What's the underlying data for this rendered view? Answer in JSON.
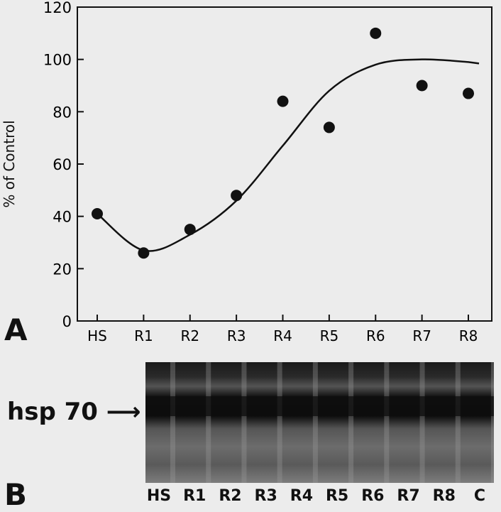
{
  "panel_a": {
    "letter": "A",
    "chart_data": {
      "type": "scatter",
      "title": "",
      "xlabel": "",
      "ylabel": "% of Control",
      "categories": [
        "HS",
        "R1",
        "R2",
        "R3",
        "R4",
        "R5",
        "R6",
        "R7",
        "R8"
      ],
      "values": [
        41,
        26,
        35,
        48,
        84,
        74,
        110,
        90,
        87
      ],
      "yticks": [
        "0",
        "20",
        "40",
        "60",
        "80",
        "100",
        "120"
      ],
      "ylim": [
        0,
        120
      ],
      "grid": false,
      "fit_curve": [
        41,
        27,
        33,
        46,
        67,
        88,
        98,
        100,
        99
      ]
    }
  },
  "panel_b": {
    "letter": "B",
    "band_label": "hsp 70",
    "lanes": [
      "HS",
      "R1",
      "R2",
      "R3",
      "R4",
      "R5",
      "R6",
      "R7",
      "R8",
      "C"
    ]
  }
}
